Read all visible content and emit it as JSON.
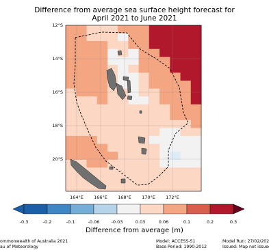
{
  "title": {
    "line1": "Difference from average sea surface height forecast for",
    "line2": "April 2021 to June 2021"
  },
  "map": {
    "lat_ticks": [
      "12°S",
      "14°S",
      "16°S",
      "18°S",
      "20°S"
    ],
    "lon_ticks": [
      "164°E",
      "166°E",
      "168°E",
      "170°E",
      "172°E"
    ]
  },
  "colorbar": {
    "label": "Difference from average (m)",
    "ticks": [
      "-0.3",
      "-0.2",
      "-0.1",
      "-0.06",
      "-0.03",
      "0.03",
      "0.06",
      "0.1",
      "0.2",
      "0.3"
    ],
    "colors": [
      "#1a5fa8",
      "#3f86c4",
      "#74aed6",
      "#b6d4e9",
      "#deebf5",
      "#f2f2f2",
      "#fbd7c4",
      "#f4a582",
      "#d6604d",
      "#b2182b"
    ]
  },
  "footer": {
    "left_line1": "ommonwealth of Australia 2021",
    "left_line2": "au of Meteorology",
    "mid_line1": "Model: ACCESS-S1",
    "mid_line2": "Base Period: 1990-2012",
    "right_line1": "Model Run: 27/02/2021",
    "right_line2": "Issued: Map not issued"
  }
}
